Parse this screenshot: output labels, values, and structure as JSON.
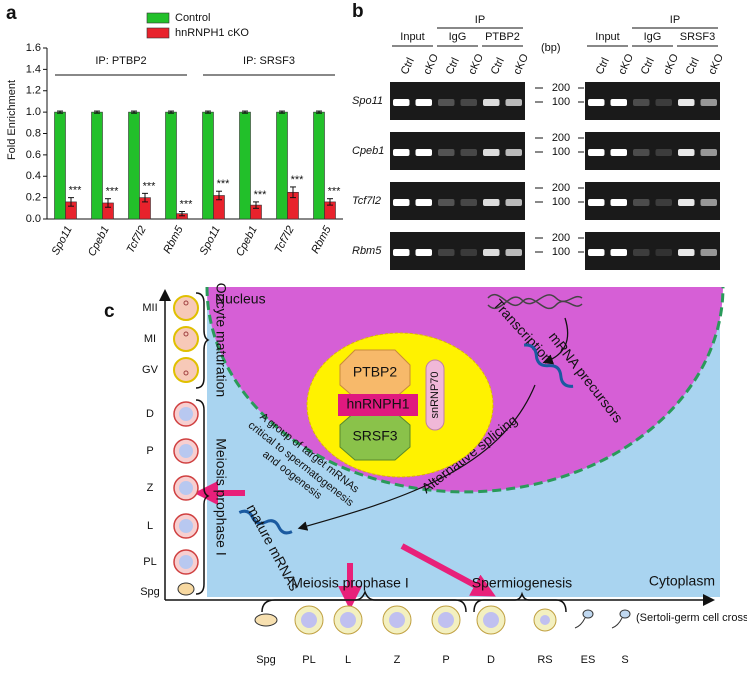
{
  "panels": [
    "a",
    "b",
    "c"
  ],
  "chart_data": {
    "type": "bar",
    "ylabel": "Fold Enrichment",
    "categories": [
      "Spo11",
      "Cpeb1",
      "Tcf7l2",
      "Rbm5",
      "Spo11",
      "Cpeb1",
      "Tcf7l2",
      "Rbm5"
    ],
    "series": [
      {
        "name": "Control",
        "color": "#22c02a",
        "values": [
          1,
          1,
          1,
          1,
          1,
          1,
          1,
          1
        ],
        "errors": [
          0.01,
          0.01,
          0.01,
          0.01,
          0.01,
          0.01,
          0.01,
          0.01
        ]
      },
      {
        "name": "hnRNPH1 cKO",
        "color": "#e8222c",
        "values": [
          0.16,
          0.15,
          0.2,
          0.05,
          0.22,
          0.13,
          0.25,
          0.16
        ],
        "errors": [
          0.04,
          0.04,
          0.04,
          0.02,
          0.04,
          0.03,
          0.05,
          0.03
        ],
        "significance": [
          "***",
          "***",
          "***",
          "***",
          "***",
          "***",
          "***",
          "***"
        ]
      }
    ],
    "groups": [
      "IP:  PTBP2",
      "IP:  SRSF3"
    ],
    "ylim": [
      0,
      1.6
    ],
    "yticks": [
      {
        "value": 0,
        "label": "0.0"
      },
      0.2,
      0.4,
      0.6,
      0.8,
      {
        "value": 1,
        "label": "1.0"
      },
      1.2,
      1.4,
      1.6
    ],
    "legend": "top"
  },
  "gel": {
    "bp": "(bp)",
    "markers": [
      "200",
      "100"
    ],
    "genes": [
      "Spo11",
      "Cpeb1",
      "Tcf7l2",
      "Rbm5"
    ],
    "blots": [
      {
        "input": "Input",
        "ip": "IP",
        "igg": "IgG",
        "antibody": "PTBP2",
        "lanes": [
          "Ctrl",
          "cKO",
          "Ctrl",
          "cKO",
          "Ctrl",
          "cKO"
        ]
      },
      {
        "input": "Input",
        "ip": "IP",
        "igg": "IgG",
        "antibody": "SRSF3",
        "lanes": [
          "Ctrl",
          "cKO",
          "Ctrl",
          "cKO",
          "Ctrl",
          "cKO"
        ]
      }
    ]
  },
  "diagram": {
    "left_labels": [
      "MII",
      "MI",
      "GV",
      "D",
      "P",
      "Z",
      "L",
      "PL",
      "Spg"
    ],
    "oocyte": "Oocyte maturation",
    "meiosis_left": "Meiosis prophase I",
    "nucleus": "Nucleus",
    "cytoplasm": "Cytoplasm",
    "transcription": "Transcription",
    "precursors": "mRNA precursors",
    "splicing": "Alternative splicing",
    "complex": {
      "top": "PTBP2",
      "middle": "hnRNPH1",
      "bottom": "SRSF3",
      "side": "snRNP70"
    },
    "targets": [
      "A group of target mRNAs",
      "critical to spermatogenesis",
      "and oogenesis"
    ],
    "mature": "mature mRNAs",
    "meiosis_bottom": "Meiosis prophase I",
    "spermiogenesis": "Spermiogenesis",
    "crosstalk": "(Sertoli-germ cell crosstalk)",
    "bottom_labels": [
      "Spg",
      "PL",
      "L",
      "Z",
      "P",
      "D",
      "RS",
      "ES",
      "S"
    ]
  }
}
